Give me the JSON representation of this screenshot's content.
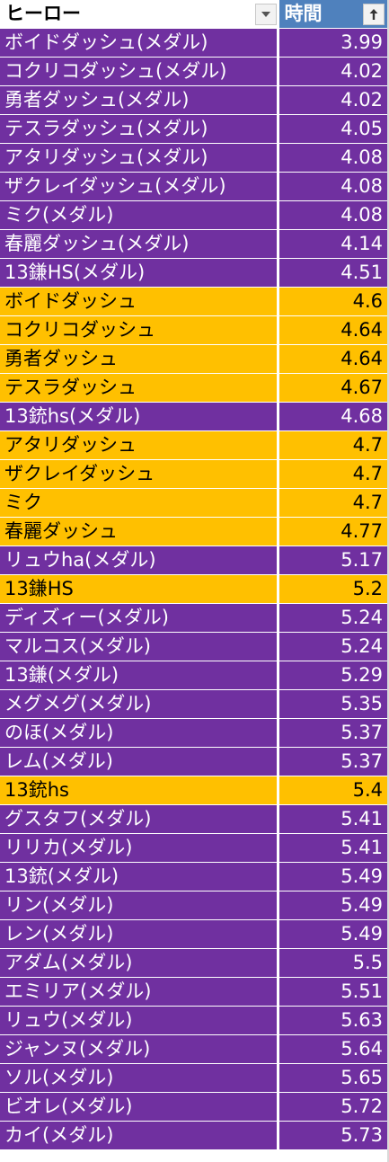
{
  "colors": {
    "purple": "#7030a0",
    "orange": "#ffc000",
    "header_time_bg": "#4f81bd"
  },
  "header": {
    "hero_label": "ヒーロー",
    "time_label": "時間",
    "hero_filter_icon": "dropdown-arrow-icon",
    "time_sort_icon": "sort-ascending-arrow-icon"
  },
  "rows": [
    {
      "name": "ボイドダッシュ(メダル)",
      "time": "3.99",
      "color": "purple"
    },
    {
      "name": "コクリコダッシュ(メダル)",
      "time": "4.02",
      "color": "purple"
    },
    {
      "name": "勇者ダッシュ(メダル)",
      "time": "4.02",
      "color": "purple"
    },
    {
      "name": "テスラダッシュ(メダル)",
      "time": "4.05",
      "color": "purple"
    },
    {
      "name": "アタリダッシュ(メダル)",
      "time": "4.08",
      "color": "purple"
    },
    {
      "name": "ザクレイダッシュ(メダル)",
      "time": "4.08",
      "color": "purple"
    },
    {
      "name": "ミク(メダル)",
      "time": "4.08",
      "color": "purple"
    },
    {
      "name": "春麗ダッシュ(メダル)",
      "time": "4.14",
      "color": "purple"
    },
    {
      "name": "13鎌HS(メダル)",
      "time": "4.51",
      "color": "purple"
    },
    {
      "name": "ボイドダッシュ",
      "time": "4.6",
      "color": "orange"
    },
    {
      "name": "コクリコダッシュ",
      "time": "4.64",
      "color": "orange"
    },
    {
      "name": "勇者ダッシュ",
      "time": "4.64",
      "color": "orange"
    },
    {
      "name": "テスラダッシュ",
      "time": "4.67",
      "color": "orange"
    },
    {
      "name": "13銃hs(メダル)",
      "time": "4.68",
      "color": "purple"
    },
    {
      "name": "アタリダッシュ",
      "time": "4.7",
      "color": "orange"
    },
    {
      "name": "ザクレイダッシュ",
      "time": "4.7",
      "color": "orange"
    },
    {
      "name": "ミク",
      "time": "4.7",
      "color": "orange"
    },
    {
      "name": "春麗ダッシュ",
      "time": "4.77",
      "color": "orange"
    },
    {
      "name": "リュウha(メダル)",
      "time": "5.17",
      "color": "purple"
    },
    {
      "name": "13鎌HS",
      "time": "5.2",
      "color": "orange"
    },
    {
      "name": "ディズィー(メダル)",
      "time": "5.24",
      "color": "purple"
    },
    {
      "name": "マルコス(メダル)",
      "time": "5.24",
      "color": "purple"
    },
    {
      "name": "13鎌(メダル)",
      "time": "5.29",
      "color": "purple"
    },
    {
      "name": "メグメグ(メダル)",
      "time": "5.35",
      "color": "purple"
    },
    {
      "name": "のほ(メダル)",
      "time": "5.37",
      "color": "purple"
    },
    {
      "name": "レム(メダル)",
      "time": "5.37",
      "color": "purple"
    },
    {
      "name": "13銃hs",
      "time": "5.4",
      "color": "orange"
    },
    {
      "name": "グスタフ(メダル)",
      "time": "5.41",
      "color": "purple"
    },
    {
      "name": "リリカ(メダル)",
      "time": "5.41",
      "color": "purple"
    },
    {
      "name": "13銃(メダル)",
      "time": "5.49",
      "color": "purple"
    },
    {
      "name": "リン(メダル)",
      "time": "5.49",
      "color": "purple"
    },
    {
      "name": "レン(メダル)",
      "time": "5.49",
      "color": "purple"
    },
    {
      "name": "アダム(メダル)",
      "time": "5.5",
      "color": "purple"
    },
    {
      "name": "エミリア(メダル)",
      "time": "5.51",
      "color": "purple"
    },
    {
      "name": "リュウ(メダル)",
      "time": "5.63",
      "color": "purple"
    },
    {
      "name": "ジャンヌ(メダル)",
      "time": "5.64",
      "color": "purple"
    },
    {
      "name": "ソル(メダル)",
      "time": "5.65",
      "color": "purple"
    },
    {
      "name": "ビオレ(メダル)",
      "time": "5.72",
      "color": "purple"
    },
    {
      "name": "カイ(メダル)",
      "time": "5.73",
      "color": "purple"
    }
  ]
}
